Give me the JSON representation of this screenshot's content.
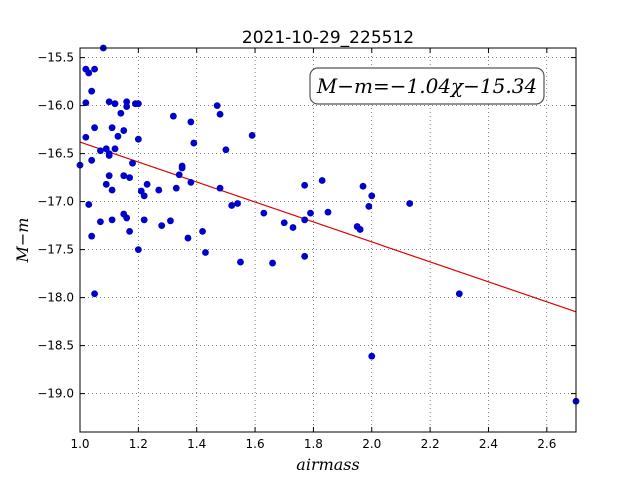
{
  "chart_data": {
    "type": "scatter",
    "title": "2021-10-29_225512",
    "xlabel": "airmass",
    "ylabel": "M−m",
    "xlim": [
      1.0,
      2.7
    ],
    "ylim": [
      -19.4,
      -15.4
    ],
    "y_inverted": true,
    "grid": true,
    "xticks": [
      1.0,
      1.2,
      1.4,
      1.6,
      1.8,
      2.0,
      2.2,
      2.4,
      2.6
    ],
    "xtick_labels": [
      "1.0",
      "1.2",
      "1.4",
      "1.6",
      "1.8",
      "2.0",
      "2.2",
      "2.4",
      "2.6"
    ],
    "yticks": [
      -15.5,
      -16.0,
      -16.5,
      -17.0,
      -17.5,
      -18.0,
      -18.5,
      -19.0
    ],
    "ytick_labels": [
      "−15.5",
      "−16.0",
      "−16.5",
      "−17.0",
      "−17.5",
      "−18.0",
      "−18.5",
      "−19.0"
    ],
    "annotation": "M−m=−1.04χ−15.34",
    "fit": {
      "slope": -1.04,
      "intercept": -15.34,
      "color": "#e00000"
    },
    "point_color": "#0000cc",
    "points": [
      [
        1.0,
        -16.62
      ],
      [
        1.02,
        -16.33
      ],
      [
        1.02,
        -15.97
      ],
      [
        1.02,
        -15.62
      ],
      [
        1.03,
        -15.66
      ],
      [
        1.03,
        -17.03
      ],
      [
        1.04,
        -16.57
      ],
      [
        1.04,
        -17.36
      ],
      [
        1.04,
        -15.85
      ],
      [
        1.05,
        -15.62
      ],
      [
        1.05,
        -17.96
      ],
      [
        1.05,
        -16.23
      ],
      [
        1.07,
        -17.21
      ],
      [
        1.07,
        -16.47
      ],
      [
        1.08,
        -15.4
      ],
      [
        1.09,
        -16.82
      ],
      [
        1.09,
        -16.45
      ],
      [
        1.1,
        -16.52
      ],
      [
        1.1,
        -16.73
      ],
      [
        1.1,
        -15.96
      ],
      [
        1.1,
        -16.5
      ],
      [
        1.11,
        -17.19
      ],
      [
        1.11,
        -16.23
      ],
      [
        1.11,
        -16.88
      ],
      [
        1.12,
        -16.45
      ],
      [
        1.12,
        -15.98
      ],
      [
        1.13,
        -16.32
      ],
      [
        1.14,
        -16.08
      ],
      [
        1.15,
        -16.73
      ],
      [
        1.15,
        -16.26
      ],
      [
        1.15,
        -17.13
      ],
      [
        1.16,
        -17.17
      ],
      [
        1.16,
        -15.96
      ],
      [
        1.16,
        -16.01
      ],
      [
        1.17,
        -16.75
      ],
      [
        1.17,
        -17.31
      ],
      [
        1.18,
        -16.6
      ],
      [
        1.19,
        -15.98
      ],
      [
        1.2,
        -15.98
      ],
      [
        1.2,
        -16.35
      ],
      [
        1.2,
        -17.5
      ],
      [
        1.21,
        -16.89
      ],
      [
        1.22,
        -16.94
      ],
      [
        1.22,
        -17.19
      ],
      [
        1.23,
        -16.82
      ],
      [
        1.27,
        -16.88
      ],
      [
        1.28,
        -17.25
      ],
      [
        1.31,
        -17.2
      ],
      [
        1.32,
        -16.11
      ],
      [
        1.33,
        -16.86
      ],
      [
        1.34,
        -16.72
      ],
      [
        1.35,
        -16.63
      ],
      [
        1.35,
        -16.65
      ],
      [
        1.37,
        -17.38
      ],
      [
        1.38,
        -16.8
      ],
      [
        1.38,
        -16.17
      ],
      [
        1.39,
        -16.39
      ],
      [
        1.42,
        -17.31
      ],
      [
        1.43,
        -17.53
      ],
      [
        1.47,
        -16.0
      ],
      [
        1.48,
        -16.09
      ],
      [
        1.48,
        -16.86
      ],
      [
        1.5,
        -16.46
      ],
      [
        1.52,
        -17.04
      ],
      [
        1.54,
        -17.02
      ],
      [
        1.55,
        -17.63
      ],
      [
        1.59,
        -16.31
      ],
      [
        1.63,
        -17.12
      ],
      [
        1.66,
        -17.64
      ],
      [
        1.7,
        -17.22
      ],
      [
        1.73,
        -17.27
      ],
      [
        1.77,
        -16.83
      ],
      [
        1.77,
        -17.19
      ],
      [
        1.77,
        -17.57
      ],
      [
        1.79,
        -17.12
      ],
      [
        1.83,
        -16.78
      ],
      [
        1.85,
        -17.11
      ],
      [
        1.95,
        -17.26
      ],
      [
        1.96,
        -17.29
      ],
      [
        1.97,
        -16.84
      ],
      [
        1.99,
        -17.05
      ],
      [
        2.0,
        -16.94
      ],
      [
        2.0,
        -18.61
      ],
      [
        2.13,
        -17.02
      ],
      [
        2.3,
        -17.96
      ],
      [
        2.7,
        -19.08
      ]
    ]
  }
}
